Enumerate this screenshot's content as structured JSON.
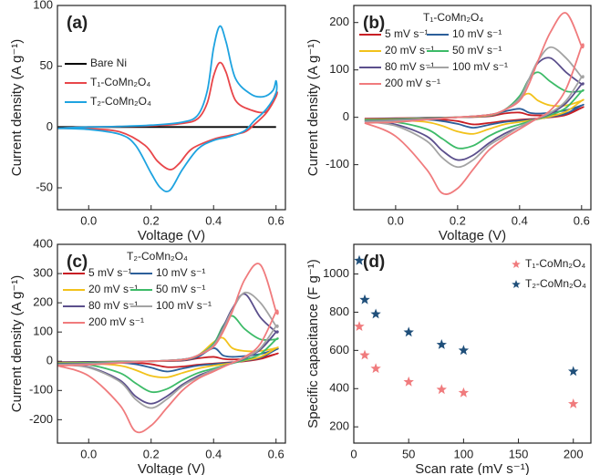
{
  "chart_data": [
    {
      "type": "line",
      "panel_label": "(a)",
      "xlabel": "Voltage (V)",
      "ylabel": "Current density (A g⁻¹)",
      "xlim": [
        -0.1,
        0.63
      ],
      "ylim": [
        -68,
        100
      ],
      "xticks": [
        {
          "value": 0,
          "label": "0.0"
        },
        0.2,
        0.4,
        0.6
      ],
      "yticks": [
        -50,
        0,
        50,
        100
      ],
      "legend": "center left",
      "series": [
        {
          "name": "Bare Ni",
          "color": "#000000",
          "x": [
            -0.1,
            0.6
          ],
          "values": [
            0,
            0
          ]
        },
        {
          "name": "T₁-CoMn₂O₄",
          "color": "#e8464a",
          "x": [
            -0.1,
            0,
            0.2,
            0.3,
            0.35,
            0.38,
            0.4,
            0.42,
            0.44,
            0.47,
            0.52,
            0.57,
            0.6,
            0.6,
            0.57,
            0.53,
            0.5,
            0.45,
            0.4,
            0.33,
            0.29,
            0.26,
            0.22,
            0.18,
            0.1,
            0,
            -0.1
          ],
          "values": [
            -1,
            0,
            1,
            3,
            7,
            20,
            42,
            53,
            45,
            22,
            14,
            13,
            28,
            25,
            12,
            2,
            -4,
            -7,
            -10,
            -18,
            -30,
            -35,
            -28,
            -15,
            -4,
            -1.5,
            -1
          ]
        },
        {
          "name": "T₂-CoMn₂O₄",
          "color": "#1ea3e0",
          "x": [
            -0.1,
            0,
            0.1,
            0.2,
            0.3,
            0.35,
            0.38,
            0.4,
            0.42,
            0.44,
            0.47,
            0.52,
            0.56,
            0.59,
            0.6,
            0.6,
            0.57,
            0.53,
            0.5,
            0.45,
            0.4,
            0.35,
            0.3,
            0.26,
            0.23,
            0.2,
            0.15,
            0.1,
            0,
            -0.1
          ],
          "values": [
            -1,
            0,
            0.5,
            1.5,
            4,
            10,
            30,
            65,
            83,
            70,
            40,
            27,
            25,
            30,
            38,
            28,
            15,
            5,
            -3,
            -8,
            -11,
            -18,
            -35,
            -52,
            -50,
            -38,
            -15,
            -6,
            -2,
            -1
          ]
        }
      ]
    },
    {
      "type": "line",
      "panel_label": "(b)",
      "xlabel": "Voltage (V)",
      "ylabel": "Current density (A g⁻¹)",
      "xlim": [
        -0.135,
        0.63
      ],
      "ylim": [
        -195,
        236
      ],
      "xticks": [
        {
          "value": 0,
          "label": "0.0"
        },
        0.2,
        0.4,
        0.6
      ],
      "yticks": [
        -100,
        0,
        100,
        200
      ],
      "legend": "upper left",
      "legend_title": "T₁-CoMn₂O₄",
      "x": [
        -0.1,
        0,
        0.1,
        0.2,
        0.3,
        0.35,
        0.4,
        0.43,
        0.46,
        0.5,
        0.55,
        0.6,
        0.6,
        0.55,
        0.5,
        0.45,
        0.4,
        0.35,
        0.3,
        0.25,
        0.2,
        0.15,
        0.1,
        0,
        -0.1
      ],
      "series": [
        {
          "name": "5 mV s⁻¹",
          "color": "#c81e24",
          "values": [
            -3,
            -2,
            -1,
            0,
            2,
            8,
            10,
            5,
            4,
            5,
            8,
            20,
            20,
            5,
            0,
            -3,
            -5,
            -8,
            -12,
            -15,
            -8,
            -5,
            -3,
            -3,
            -3
          ]
        },
        {
          "name": "10 mV s⁻¹",
          "color": "#2c5f9a",
          "values": [
            -4,
            -3,
            -1,
            0,
            3,
            12,
            18,
            10,
            8,
            10,
            15,
            25,
            25,
            8,
            1,
            -4,
            -7,
            -10,
            -16,
            -22,
            -14,
            -8,
            -5,
            -4,
            -4
          ]
        },
        {
          "name": "20 mV s⁻¹",
          "color": "#f2c21b",
          "values": [
            -5,
            -4,
            -2,
            0,
            4,
            15,
            40,
            50,
            35,
            25,
            25,
            35,
            35,
            12,
            2,
            -5,
            -10,
            -15,
            -25,
            -35,
            -30,
            -18,
            -10,
            -6,
            -5
          ]
        },
        {
          "name": "50 mV s⁻¹",
          "color": "#3dbb68",
          "values": [
            -6,
            -5,
            -3,
            0,
            5,
            15,
            45,
            80,
            95,
            75,
            55,
            55,
            55,
            20,
            5,
            -5,
            -15,
            -25,
            -40,
            -60,
            -65,
            -45,
            -25,
            -10,
            -6
          ]
        },
        {
          "name": "80 mV s⁻¹",
          "color": "#5b4f8c",
          "values": [
            -8,
            -6,
            -3,
            0,
            5,
            15,
            40,
            80,
            115,
            125,
            95,
            70,
            70,
            30,
            8,
            -5,
            -20,
            -35,
            -55,
            -80,
            -90,
            -70,
            -40,
            -15,
            -8
          ]
        },
        {
          "name": "100 mV s⁻¹",
          "color": "#a3a3a3",
          "values": [
            -9,
            -7,
            -4,
            0,
            5,
            15,
            40,
            80,
            120,
            148,
            125,
            85,
            85,
            35,
            10,
            -5,
            -20,
            -40,
            -60,
            -90,
            -105,
            -85,
            -50,
            -18,
            -9
          ]
        },
        {
          "name": "200 mV s⁻¹",
          "color": "#f07b7d",
          "values": [
            -12,
            -10,
            -5,
            0,
            5,
            15,
            35,
            70,
            120,
            180,
            220,
            150,
            150,
            60,
            15,
            -5,
            -25,
            -45,
            -70,
            -110,
            -150,
            -160,
            -110,
            -40,
            -12
          ]
        }
      ]
    },
    {
      "type": "line",
      "panel_label": "(c)",
      "xlabel": "Voltage (V)",
      "ylabel": "Current density (A g⁻¹)",
      "xlim": [
        -0.1,
        0.63
      ],
      "ylim": [
        -280,
        400
      ],
      "xticks": [
        {
          "value": 0,
          "label": "0.0"
        },
        0.2,
        0.4,
        0.6
      ],
      "yticks": [
        -200,
        -100,
        0,
        100,
        200,
        300,
        400
      ],
      "legend": "upper left",
      "legend_title": "T₂-CoMn₂O₄",
      "x": [
        -0.1,
        0,
        0.1,
        0.2,
        0.3,
        0.35,
        0.4,
        0.43,
        0.46,
        0.5,
        0.55,
        0.6,
        0.6,
        0.55,
        0.5,
        0.45,
        0.4,
        0.35,
        0.3,
        0.25,
        0.2,
        0.15,
        0.1,
        0,
        -0.1
      ],
      "series": [
        {
          "name": "5 mV s⁻¹",
          "color": "#c81e24",
          "values": [
            -3,
            -2,
            -1,
            0,
            2,
            10,
            15,
            8,
            6,
            8,
            12,
            25,
            25,
            8,
            0,
            -4,
            -8,
            -12,
            -18,
            -20,
            -10,
            -5,
            -3,
            -3,
            -3
          ]
        },
        {
          "name": "10 mV s⁻¹",
          "color": "#2c5f9a",
          "values": [
            -4,
            -3,
            -1,
            0,
            3,
            15,
            45,
            20,
            15,
            18,
            25,
            40,
            40,
            12,
            2,
            -5,
            -10,
            -15,
            -25,
            -35,
            -22,
            -10,
            -5,
            -4,
            -4
          ]
        },
        {
          "name": "20 mV s⁻¹",
          "color": "#f2c21b",
          "values": [
            -6,
            -5,
            -2,
            0,
            5,
            20,
            65,
            80,
            45,
            35,
            35,
            45,
            45,
            15,
            3,
            -8,
            -15,
            -25,
            -40,
            -55,
            -50,
            -30,
            -15,
            -7,
            -6
          ]
        },
        {
          "name": "50 mV s⁻¹",
          "color": "#3dbb68",
          "values": [
            -8,
            -6,
            -3,
            0,
            6,
            20,
            60,
            120,
            155,
            110,
            75,
            75,
            75,
            25,
            5,
            -10,
            -25,
            -40,
            -65,
            -95,
            -105,
            -75,
            -40,
            -12,
            -8
          ]
        },
        {
          "name": "80 mV s⁻¹",
          "color": "#5b4f8c",
          "values": [
            -10,
            -8,
            -4,
            0,
            6,
            20,
            55,
            115,
            180,
            230,
            150,
            100,
            100,
            40,
            10,
            -10,
            -30,
            -50,
            -80,
            -120,
            -145,
            -120,
            -65,
            -20,
            -10
          ]
        },
        {
          "name": "100 mV s⁻¹",
          "color": "#a3a3a3",
          "values": [
            -12,
            -9,
            -4,
            0,
            6,
            20,
            55,
            110,
            175,
            235,
            200,
            120,
            120,
            45,
            12,
            -10,
            -30,
            -55,
            -85,
            -130,
            -160,
            -130,
            -70,
            -22,
            -12
          ]
        },
        {
          "name": "200 mV s⁻¹",
          "color": "#f07b7d",
          "values": [
            -15,
            -12,
            -6,
            0,
            5,
            20,
            50,
            100,
            170,
            280,
            330,
            170,
            170,
            60,
            15,
            -10,
            -35,
            -60,
            -100,
            -160,
            -220,
            -240,
            -150,
            -50,
            -15
          ]
        }
      ]
    },
    {
      "type": "scatter",
      "panel_label": "(d)",
      "xlabel": "Scan rate (mV s⁻¹)",
      "ylabel": "Specific capacitance (F g⁻¹)",
      "xlim": [
        0,
        216
      ],
      "ylim": [
        115,
        1155
      ],
      "xticks": [
        0,
        50,
        100,
        150,
        200
      ],
      "yticks": [
        200,
        400,
        600,
        800,
        1000
      ],
      "legend": "upper right",
      "x": [
        5,
        10,
        20,
        50,
        80,
        100,
        200
      ],
      "series": [
        {
          "name": "T₁-CoMn₂O₄",
          "color": "#f07b7d",
          "values": [
            725,
            575,
            505,
            435,
            395,
            378,
            320
          ]
        },
        {
          "name": "T₂-CoMn₂O₄",
          "color": "#1f4f7a",
          "values": [
            1070,
            865,
            790,
            695,
            630,
            600,
            490
          ]
        }
      ]
    }
  ]
}
